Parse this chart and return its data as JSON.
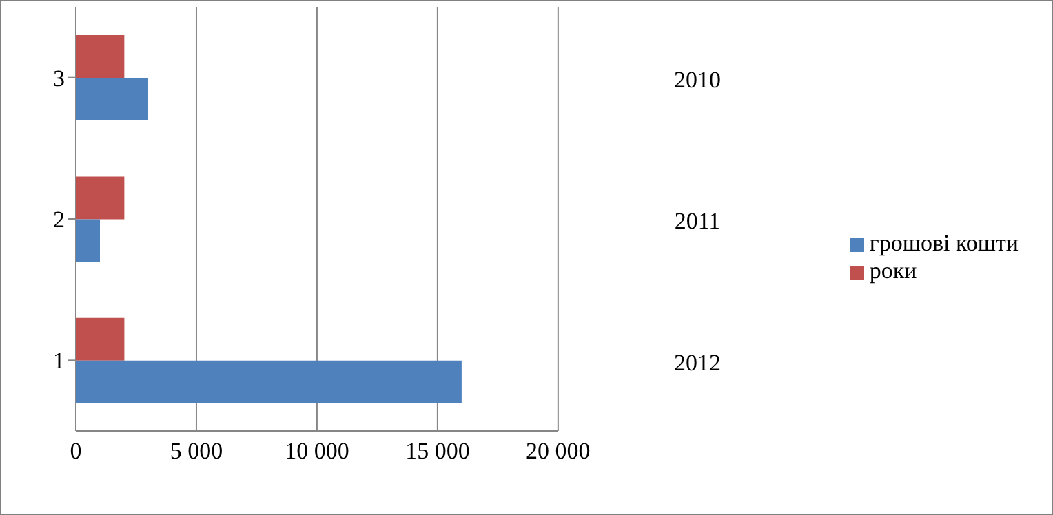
{
  "chart_data": {
    "type": "bar",
    "orientation": "horizontal",
    "categories": [
      "3",
      "2",
      "1"
    ],
    "series": [
      {
        "name": "роки",
        "color": "#c0504d",
        "values": [
          2010,
          2011,
          2012
        ],
        "value_labels": [
          "2010",
          "2011",
          "2012"
        ]
      },
      {
        "name": "грошові кошти",
        "color": "#4f81bd",
        "values": [
          3000,
          1000,
          16000
        ]
      }
    ],
    "xlim": [
      0,
      20000
    ],
    "xticks": [
      0,
      {
        "value": 5000,
        "label": "5 000"
      },
      {
        "value": 10000,
        "label": "10 000"
      },
      {
        "value": 15000,
        "label": "15 000"
      },
      {
        "value": 20000,
        "label": "20 000"
      }
    ],
    "grid": "x",
    "legend": "right"
  }
}
